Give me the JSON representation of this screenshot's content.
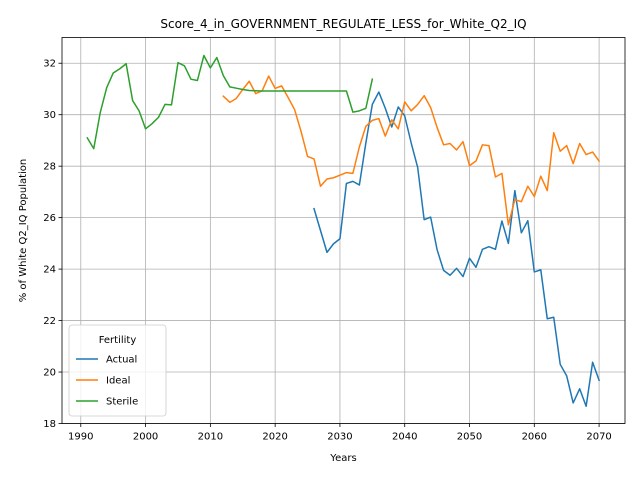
{
  "chart_data": {
    "type": "line",
    "title": "Score_4_in_GOVERNMENT_REGULATE_LESS_for_White_Q2_IQ",
    "xlabel": "Years",
    "ylabel": "% of White Q2_IQ Population",
    "xlim": [
      1987.1,
      2074.0
    ],
    "ylim": [
      18.0,
      33.0
    ],
    "xticks": [
      1990,
      2000,
      2010,
      2020,
      2030,
      2040,
      2050,
      2060,
      2070
    ],
    "yticks": [
      18,
      20,
      22,
      24,
      26,
      28,
      30,
      32
    ],
    "grid": true,
    "legend": {
      "title": "Fertility",
      "position": "lower-left"
    },
    "series": [
      {
        "name": "Actual",
        "color": "#1f77b4",
        "x": [
          2026,
          2027,
          2028,
          2029,
          2030,
          2031,
          2032,
          2033,
          2034,
          2035,
          2036,
          2037,
          2038,
          2039,
          2040,
          2041,
          2042,
          2043,
          2044,
          2045,
          2046,
          2047,
          2048,
          2049,
          2050,
          2051,
          2052,
          2053,
          2054,
          2055,
          2056,
          2057,
          2058,
          2059,
          2060,
          2061,
          2062,
          2063,
          2064,
          2065,
          2066,
          2067,
          2068,
          2069,
          2070
        ],
        "y": [
          26.35,
          25.5,
          24.65,
          24.98,
          25.18,
          27.33,
          27.41,
          27.27,
          28.9,
          30.4,
          30.88,
          30.25,
          29.52,
          30.3,
          29.95,
          28.9,
          27.95,
          25.92,
          26.02,
          24.75,
          23.95,
          23.76,
          24.03,
          23.71,
          24.42,
          24.07,
          24.77,
          24.87,
          24.77,
          25.87,
          25.0,
          27.05,
          25.41,
          25.88,
          23.89,
          23.97,
          22.07,
          22.13,
          20.3,
          19.85,
          18.8,
          19.35,
          18.67,
          20.38,
          19.68
        ]
      },
      {
        "name": "Ideal",
        "color": "#ff7f0e",
        "x": [
          2012,
          2013,
          2014,
          2015,
          2016,
          2017,
          2018,
          2019,
          2020,
          2021,
          2022,
          2023,
          2024,
          2025,
          2026,
          2027,
          2028,
          2029,
          2030,
          2031,
          2032,
          2033,
          2034,
          2035,
          2036,
          2037,
          2038,
          2039,
          2040,
          2041,
          2042,
          2043,
          2044,
          2045,
          2046,
          2047,
          2048,
          2049,
          2050,
          2051,
          2052,
          2053,
          2054,
          2055,
          2056,
          2057,
          2058,
          2059,
          2060,
          2061,
          2062,
          2063,
          2064,
          2065,
          2066,
          2067,
          2068,
          2069,
          2070
        ],
        "y": [
          30.72,
          30.48,
          30.63,
          30.98,
          31.3,
          30.82,
          30.93,
          31.5,
          31.02,
          31.12,
          30.67,
          30.2,
          29.35,
          28.38,
          28.28,
          27.22,
          27.5,
          27.55,
          27.65,
          27.75,
          27.72,
          28.75,
          29.55,
          29.78,
          29.85,
          29.17,
          29.8,
          29.45,
          30.5,
          30.15,
          30.4,
          30.74,
          30.28,
          29.5,
          28.83,
          28.88,
          28.63,
          28.95,
          28.02,
          28.2,
          28.83,
          28.8,
          27.58,
          27.72,
          25.72,
          26.7,
          26.62,
          27.22,
          26.82,
          27.61,
          27.05,
          29.3,
          28.58,
          28.8,
          28.1,
          28.88,
          28.45,
          28.55,
          28.2
        ]
      },
      {
        "name": "Sterile",
        "color": "#2ca02c",
        "x": [
          1991,
          1992,
          1993,
          1994,
          1995,
          1996,
          1997,
          1998,
          1999,
          2000,
          2001,
          2002,
          2003,
          2004,
          2005,
          2006,
          2007,
          2008,
          2009,
          2010,
          2011,
          2012,
          2013,
          2014,
          2015,
          2016,
          2017,
          2018,
          2019,
          2020,
          2021,
          2022,
          2023,
          2024,
          2025,
          2026,
          2027,
          2028,
          2029,
          2030,
          2031,
          2032,
          2033,
          2034,
          2035
        ],
        "y": [
          29.1,
          28.68,
          30.08,
          31.05,
          31.62,
          31.78,
          31.98,
          30.55,
          30.15,
          29.45,
          29.65,
          29.9,
          30.4,
          30.38,
          32.02,
          31.9,
          31.38,
          31.33,
          32.3,
          31.82,
          32.22,
          31.52,
          31.08,
          31.03,
          30.98,
          30.94,
          30.93,
          30.92,
          30.92,
          30.92,
          30.92,
          30.92,
          30.92,
          30.92,
          30.92,
          30.92,
          30.92,
          30.92,
          30.92,
          30.92,
          30.92,
          30.1,
          30.15,
          30.25,
          31.38
        ]
      }
    ]
  }
}
